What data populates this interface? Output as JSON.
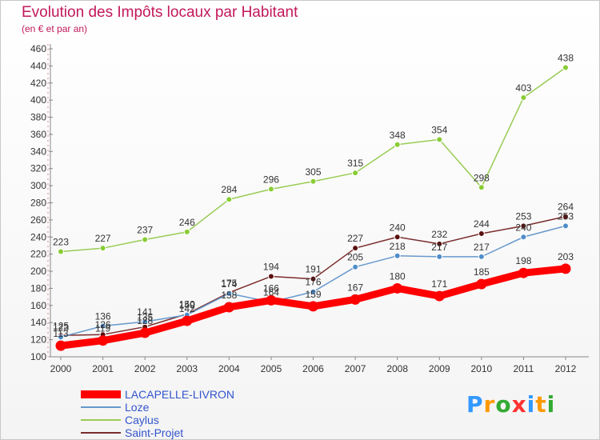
{
  "chart_data": {
    "type": "line",
    "title": "Evolution des Impôts locaux par Habitant",
    "subtitle": "(en € et par an)",
    "xlabel": "",
    "ylabel": "",
    "x": [
      "2000",
      "2001",
      "2002",
      "2003",
      "2004",
      "2005",
      "2006",
      "2007",
      "2008",
      "2009",
      "2010",
      "2011",
      "2012"
    ],
    "ylim": [
      100,
      460
    ],
    "yticks": [
      100,
      120,
      140,
      160,
      180,
      200,
      220,
      240,
      260,
      280,
      300,
      320,
      340,
      360,
      380,
      400,
      420,
      440,
      460
    ],
    "grid": false,
    "legend_position": "bottom-left",
    "series": [
      {
        "name": "LACAPELLE-LIVRON",
        "color": "#ff0000",
        "values": [
          113,
          119,
          128,
          142,
          158,
          166,
          159,
          167,
          180,
          171,
          185,
          198,
          203
        ]
      },
      {
        "name": "Loze",
        "color": "#6699cc",
        "values": [
          123,
          136,
          141,
          149,
          174,
          164,
          176,
          205,
          218,
          217,
          217,
          240,
          253
        ]
      },
      {
        "name": "Caylus",
        "color": "#99cc55",
        "values": [
          223,
          227,
          237,
          246,
          284,
          296,
          305,
          315,
          348,
          354,
          298,
          403,
          438
        ]
      },
      {
        "name": "Saint-Projet",
        "color": "#7a2c2c",
        "values": [
          125,
          126,
          135,
          150,
          175,
          194,
          191,
          227,
          240,
          232,
          244,
          253,
          264
        ]
      }
    ]
  },
  "logo": {
    "letters": [
      "P",
      "r",
      "o",
      "x",
      "i",
      "t",
      "i"
    ],
    "colors": [
      "#3399ff",
      "#ff9900",
      "#33aa33",
      "#ff3333",
      "#3399ff",
      "#ff9900",
      "#33aa33"
    ]
  }
}
